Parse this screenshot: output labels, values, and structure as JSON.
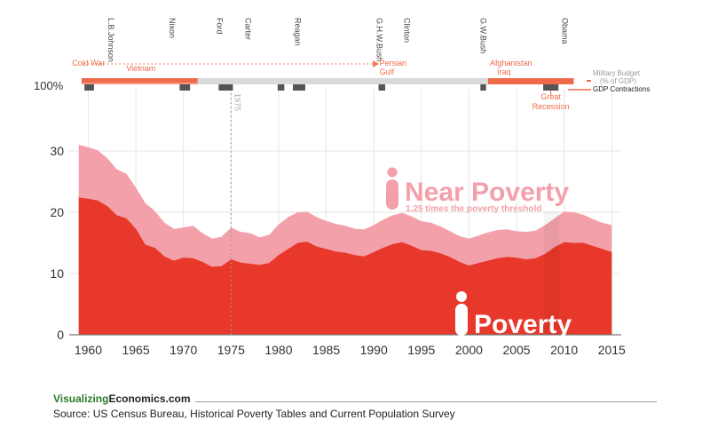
{
  "chart_data": {
    "type": "area",
    "title": "",
    "xlabel": "",
    "ylabel": "",
    "xlim": [
      1958,
      2016
    ],
    "ylim": [
      0,
      30
    ],
    "x_ticks": [
      1960,
      1965,
      1970,
      1975,
      1980,
      1985,
      1990,
      1995,
      2000,
      2005,
      2010,
      2015
    ],
    "y_ticks": [
      0,
      10,
      20,
      30
    ],
    "x": [
      1959,
      1960,
      1961,
      1962,
      1963,
      1964,
      1965,
      1966,
      1967,
      1968,
      1969,
      1970,
      1971,
      1972,
      1973,
      1974,
      1975,
      1976,
      1977,
      1978,
      1979,
      1980,
      1981,
      1982,
      1983,
      1984,
      1985,
      1986,
      1987,
      1988,
      1989,
      1990,
      1991,
      1992,
      1993,
      1994,
      1995,
      1996,
      1997,
      1998,
      1999,
      2000,
      2001,
      2002,
      2003,
      2004,
      2005,
      2006,
      2007,
      2008,
      2009,
      2010,
      2011,
      2012,
      2013,
      2014,
      2015
    ],
    "series": [
      {
        "name": "Poverty",
        "color": "#e8382b",
        "values": [
          22.4,
          22.2,
          21.9,
          21.0,
          19.5,
          19.0,
          17.3,
          14.7,
          14.2,
          12.8,
          12.1,
          12.6,
          12.5,
          11.9,
          11.1,
          11.2,
          12.3,
          11.8,
          11.6,
          11.4,
          11.7,
          13.0,
          14.0,
          15.0,
          15.2,
          14.4,
          14.0,
          13.6,
          13.4,
          13.0,
          12.8,
          13.5,
          14.2,
          14.8,
          15.1,
          14.5,
          13.8,
          13.7,
          13.3,
          12.7,
          11.9,
          11.3,
          11.7,
          12.1,
          12.5,
          12.7,
          12.6,
          12.3,
          12.5,
          13.2,
          14.3,
          15.1,
          15.0,
          15.0,
          14.5,
          14.0,
          13.5
        ]
      },
      {
        "name": "Near Poverty",
        "color": "#f3a0aa",
        "values": [
          31.0,
          30.6,
          30.1,
          28.8,
          27.0,
          26.3,
          24.0,
          21.5,
          20.2,
          18.3,
          17.3,
          17.5,
          17.8,
          16.6,
          15.7,
          16.0,
          17.5,
          16.8,
          16.6,
          15.9,
          16.3,
          18.0,
          19.2,
          20.0,
          20.1,
          19.2,
          18.6,
          18.1,
          17.8,
          17.3,
          17.2,
          17.9,
          18.8,
          19.5,
          19.9,
          19.3,
          18.5,
          18.3,
          17.7,
          16.9,
          16.1,
          15.7,
          16.2,
          16.7,
          17.1,
          17.2,
          16.9,
          16.8,
          17.0,
          17.9,
          19.0,
          20.1,
          20.0,
          19.6,
          18.9,
          18.3,
          17.9
        ]
      }
    ],
    "legend_labels": {
      "near_poverty": "Near Poverty",
      "near_poverty_sub": "1.25 times the poverty threshold",
      "poverty": "Poverty"
    },
    "reference_line": {
      "year": 1975,
      "label": "1975"
    },
    "timeline": {
      "percent_label": "100%",
      "presidents": [
        {
          "name": "L.B.Johnson",
          "year": 1962.4
        },
        {
          "name": "Nixon",
          "year": 1968.8
        },
        {
          "name": "Ford",
          "year": 1973.8
        },
        {
          "name": "Carter",
          "year": 1976.8
        },
        {
          "name": "Reagan",
          "year": 1982.0
        },
        {
          "name": "G.H.W.Bush",
          "year": 1990.6
        },
        {
          "name": "Clinton",
          "year": 1993.5
        },
        {
          "name": "G.W.Bush",
          "year": 2001.5
        },
        {
          "name": "Obama",
          "year": 2010.1
        }
      ],
      "wars": [
        {
          "label": "Cold War",
          "year": 1958.3
        },
        {
          "label": "Vietnam",
          "year": 1964.0
        },
        {
          "label": "Persian Gulf",
          "year": 1990.6
        },
        {
          "label": "Afghanistan Iraq",
          "year": 2002.2
        }
      ],
      "recession_label": "Great Recession",
      "military_budget_label": "Military Budget (% of GDP)",
      "gdp_contractions_label": "GDP Contractions",
      "gdp_contractions": [
        [
          1959.6,
          1960.6
        ],
        [
          1969.6,
          1970.7
        ],
        [
          1973.7,
          1975.2
        ],
        [
          1979.9,
          1980.6
        ],
        [
          1981.5,
          1982.8
        ],
        [
          1990.5,
          1991.2
        ],
        [
          2001.2,
          2001.8
        ],
        [
          2007.8,
          2009.4
        ]
      ]
    }
  },
  "footer": {
    "brand_green": "Visualizing",
    "brand_dark": "Economics.com",
    "source": "Source: US Census Bureau, Historical Poverty Tables and Current Population Survey"
  }
}
